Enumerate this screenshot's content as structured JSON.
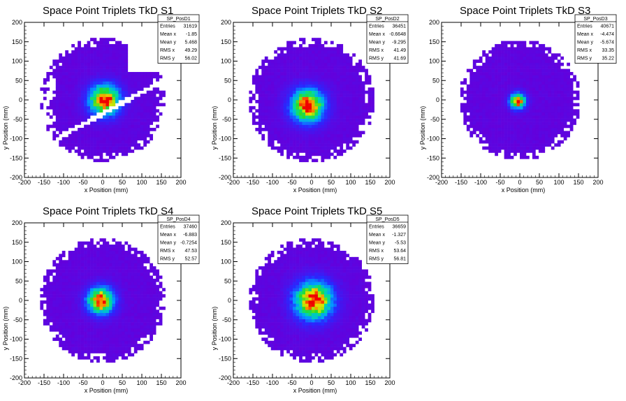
{
  "chart_data": [
    {
      "type": "heatmap",
      "title": "Space Point Triplets TkD S1",
      "xlabel": "x Position (mm)",
      "ylabel": "y Position (mm)",
      "xlim": [
        -200,
        200
      ],
      "ylim": [
        -200,
        200
      ],
      "xticks": [
        "-200",
        "-150",
        "-100",
        "-50",
        "0",
        "50",
        "100",
        "150",
        "200"
      ],
      "yticks": [
        "200",
        "150",
        "100",
        "50",
        "0",
        "-50",
        "-100",
        "-150",
        "-200"
      ],
      "stats": {
        "name": "SP_PosD1",
        "rows": [
          [
            "Entries",
            "31619"
          ],
          [
            "Mean x",
            "-1.85"
          ],
          [
            "Mean y",
            "5.468"
          ],
          [
            "RMS x",
            "49.29"
          ],
          [
            "RMS y",
            "56.02"
          ]
        ]
      },
      "peak": {
        "x": 5,
        "y": 0,
        "sigma": 28
      },
      "radius": 160,
      "stripe_gaps": true
    },
    {
      "type": "heatmap",
      "title": "Space Point Triplets TkD S2",
      "xlabel": "x Position (mm)",
      "ylabel": "y Position (mm)",
      "xlim": [
        -200,
        200
      ],
      "ylim": [
        -200,
        200
      ],
      "xticks": [
        "-200",
        "-150",
        "-100",
        "-50",
        "0",
        "50",
        "100",
        "150",
        "200"
      ],
      "yticks": [
        "200",
        "150",
        "100",
        "50",
        "0",
        "-50",
        "-100",
        "-150",
        "-200"
      ],
      "stats": {
        "name": "SP_PosD2",
        "rows": [
          [
            "Entries",
            "36451"
          ],
          [
            "Mean x",
            "-0.6648"
          ],
          [
            "Mean y",
            "-9.295"
          ],
          [
            "RMS x",
            "41.49"
          ],
          [
            "RMS y",
            "41.69"
          ]
        ]
      },
      "peak": {
        "x": -10,
        "y": -15,
        "sigma": 30
      },
      "radius": 160,
      "stripe_gaps": false
    },
    {
      "type": "heatmap",
      "title": "Space Point Triplets TkD S3",
      "xlabel": "x Position (mm)",
      "ylabel": "y Position (mm)",
      "xlim": [
        -200,
        200
      ],
      "ylim": [
        -200,
        200
      ],
      "xticks": [
        "-200",
        "-150",
        "-100",
        "-50",
        "0",
        "50",
        "100",
        "150",
        "200"
      ],
      "yticks": [
        "200",
        "150",
        "100",
        "50",
        "0",
        "-50",
        "-100",
        "-150",
        "-200"
      ],
      "stats": {
        "name": "SP_PosD3",
        "rows": [
          [
            "Entries",
            "40671"
          ],
          [
            "Mean x",
            "-4.474"
          ],
          [
            "Mean y",
            "-5.674"
          ],
          [
            "RMS x",
            "33.35"
          ],
          [
            "RMS y",
            "35.22"
          ]
        ]
      },
      "peak": {
        "x": -5,
        "y": -3,
        "sigma": 14
      },
      "radius": 155,
      "stripe_gaps": false
    },
    {
      "type": "heatmap",
      "title": "Space Point Triplets TkD S4",
      "xlabel": "x Position (mm)",
      "ylabel": "y Position (mm)",
      "xlim": [
        -200,
        200
      ],
      "ylim": [
        -200,
        200
      ],
      "xticks": [
        "-200",
        "-150",
        "-100",
        "-50",
        "0",
        "50",
        "100",
        "150",
        "200"
      ],
      "yticks": [
        "200",
        "150",
        "100",
        "50",
        "0",
        "-50",
        "-100",
        "-150",
        "-200"
      ],
      "stats": {
        "name": "SP_PosD4",
        "rows": [
          [
            "Entries",
            "37460"
          ],
          [
            "Mean x",
            "-6.883"
          ],
          [
            "Mean y",
            "-0.7254"
          ],
          [
            "RMS x",
            "47.53"
          ],
          [
            "RMS y",
            "52.57"
          ]
        ]
      },
      "peak": {
        "x": -5,
        "y": 0,
        "sigma": 24
      },
      "radius": 160,
      "stripe_gaps": false
    },
    {
      "type": "heatmap",
      "title": "Space Point Triplets TkD S5",
      "xlabel": "x Position (mm)",
      "ylabel": "y Position (mm)",
      "xlim": [
        -200,
        200
      ],
      "ylim": [
        -200,
        200
      ],
      "xticks": [
        "-200",
        "-150",
        "-100",
        "-50",
        "0",
        "50",
        "100",
        "150",
        "200"
      ],
      "yticks": [
        "200",
        "150",
        "100",
        "50",
        "0",
        "-50",
        "-100",
        "-150",
        "-200"
      ],
      "stats": {
        "name": "SP_PosD5",
        "rows": [
          [
            "Entries",
            "36659"
          ],
          [
            "Mean x",
            "-1.327"
          ],
          [
            "Mean y",
            "-5.53"
          ],
          [
            "RMS x",
            "53.64"
          ],
          [
            "RMS y",
            "56.81"
          ]
        ]
      },
      "peak": {
        "x": 5,
        "y": 0,
        "sigma": 34
      },
      "radius": 160,
      "stripe_gaps": false
    }
  ]
}
